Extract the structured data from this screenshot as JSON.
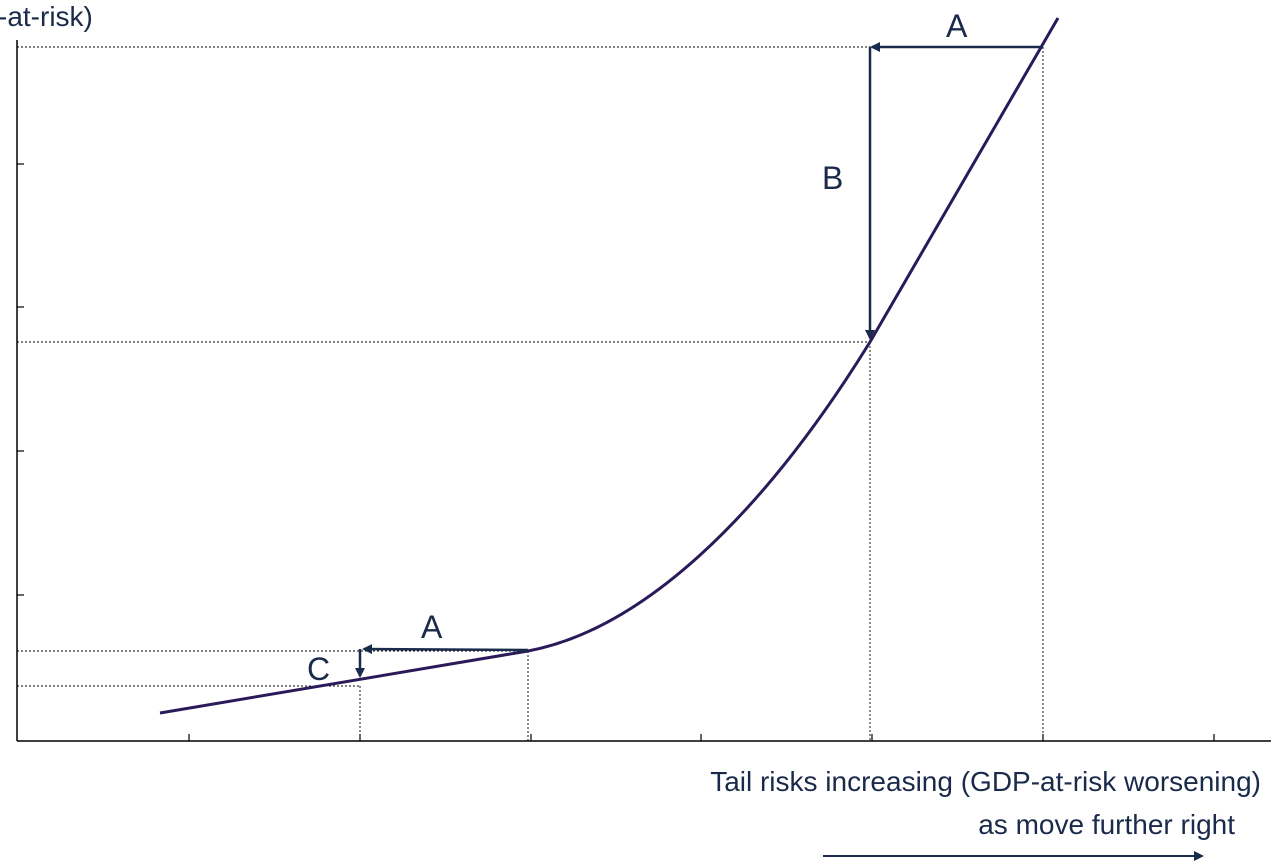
{
  "y_axis": {
    "label_fragment": "-at-risk)"
  },
  "x_axis": {
    "caption_line1": "Tail risks increasing (GDP-at-risk worsening)",
    "caption_line2": "as move further right"
  },
  "annotations": {
    "arrow_a_upper": "A",
    "arrow_b": "B",
    "arrow_a_lower": "A",
    "arrow_c": "C"
  },
  "colors": {
    "curve": "#2b1a5a",
    "arrow": "#1a2a4a",
    "axis": "#000000",
    "guide": "#000000"
  }
}
